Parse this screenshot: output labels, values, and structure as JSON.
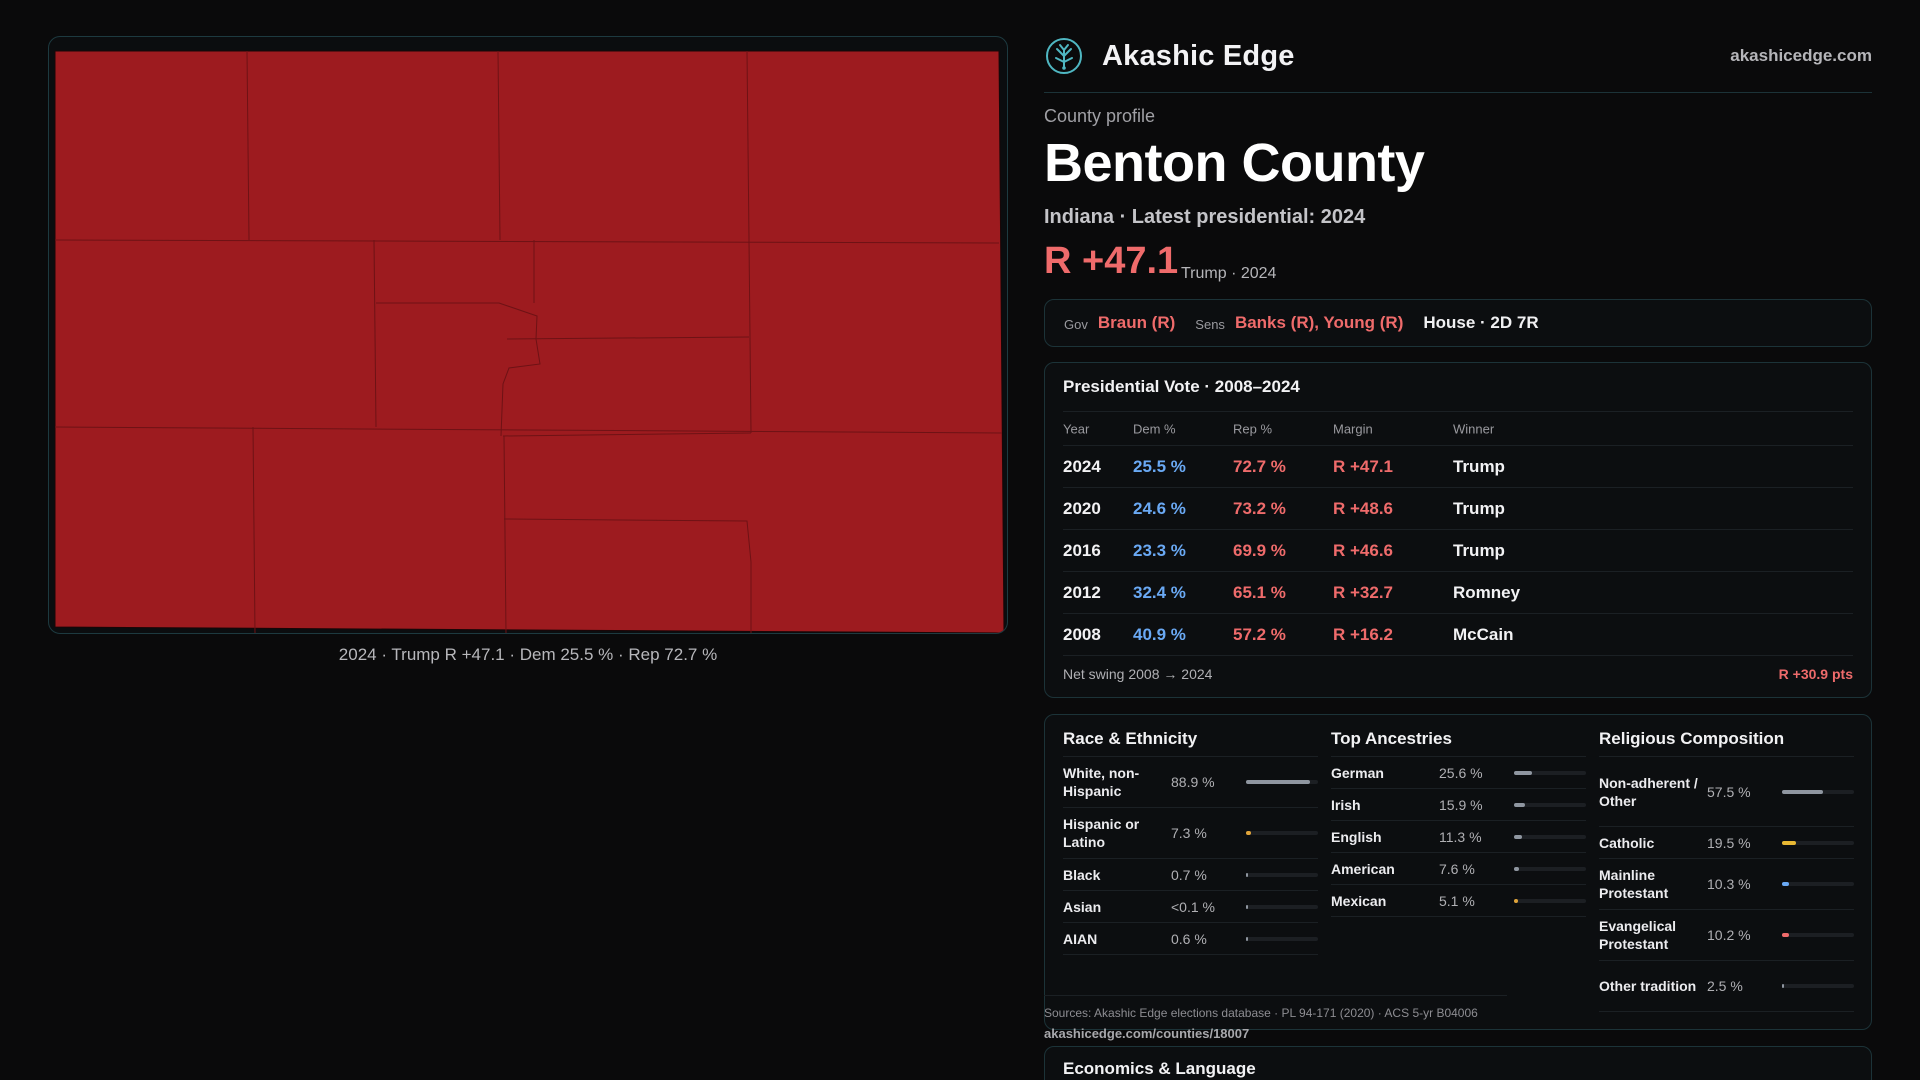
{
  "brand": {
    "name": "Akashic Edge",
    "url": "akashicedge.com",
    "logo_icon": "tree-globe-icon"
  },
  "county": {
    "eyebrow": "County profile",
    "name": "Benton County",
    "subtitle": "Indiana · Latest presidential: 2024",
    "margin": "R +47.1",
    "margin_note": "Trump · 2024"
  },
  "map": {
    "fill_color": "#9d1b1f",
    "caption": "2024 · Trump R +47.1 · Dem 25.5 % · Rep 72.7 %"
  },
  "officials": {
    "gov_label": "Gov",
    "gov": "Braun (R)",
    "sens_label": "Sens",
    "sens": "Banks (R), Young (R)",
    "house": "House · 2D 7R"
  },
  "presidential": {
    "title": "Presidential Vote · 2008–2024",
    "columns": {
      "year": "Year",
      "dem": "Dem %",
      "rep": "Rep %",
      "margin": "Margin",
      "winner": "Winner"
    },
    "rows": [
      {
        "year": "2024",
        "dem": "25.5 %",
        "rep": "72.7 %",
        "margin": "R +47.1",
        "winner": "Trump"
      },
      {
        "year": "2020",
        "dem": "24.6 %",
        "rep": "73.2 %",
        "margin": "R +48.6",
        "winner": "Trump"
      },
      {
        "year": "2016",
        "dem": "23.3 %",
        "rep": "69.9 %",
        "margin": "R +46.6",
        "winner": "Trump"
      },
      {
        "year": "2012",
        "dem": "32.4 %",
        "rep": "65.1 %",
        "margin": "R +32.7",
        "winner": "Romney"
      },
      {
        "year": "2008",
        "dem": "40.9 %",
        "rep": "57.2 %",
        "margin": "R +16.2",
        "winner": "McCain"
      }
    ],
    "swing_label": "Net swing 2008 → 2024",
    "swing_value": "R +30.9 pts"
  },
  "race": {
    "title": "Race & Ethnicity",
    "items": [
      {
        "label": "White, non-Hispanic",
        "pct": "88.9 %",
        "value": 0.889,
        "color": "#8f96a0"
      },
      {
        "label": "Hispanic or Latino",
        "pct": "7.3 %",
        "value": 0.073,
        "color": "#e0a43a"
      },
      {
        "label": "Black",
        "pct": "0.7 %",
        "value": 0.007,
        "color": "#8f96a0"
      },
      {
        "label": "Asian",
        "pct": "<0.1 %",
        "value": 0.0,
        "color": "#8f96a0"
      },
      {
        "label": "AIAN",
        "pct": "0.6 %",
        "value": 0.006,
        "color": "#8f96a0"
      }
    ]
  },
  "ancestry": {
    "title": "Top Ancestries",
    "items": [
      {
        "label": "German",
        "pct": "25.6 %",
        "value": 0.256,
        "color": "#8f96a0"
      },
      {
        "label": "Irish",
        "pct": "15.9 %",
        "value": 0.159,
        "color": "#8f96a0"
      },
      {
        "label": "English",
        "pct": "11.3 %",
        "value": 0.113,
        "color": "#8f96a0"
      },
      {
        "label": "American",
        "pct": "7.6 %",
        "value": 0.076,
        "color": "#8f96a0"
      },
      {
        "label": "Mexican",
        "pct": "5.1 %",
        "value": 0.051,
        "color": "#e0a43a"
      }
    ]
  },
  "religion": {
    "title": "Religious Composition",
    "items": [
      {
        "label": "Non-adherent / Other",
        "pct": "57.5 %",
        "value": 0.575,
        "color": "#8f96a0"
      },
      {
        "label": "Catholic",
        "pct": "19.5 %",
        "value": 0.195,
        "color": "#e8b833"
      },
      {
        "label": "Mainline Protestant",
        "pct": "10.3 %",
        "value": 0.103,
        "color": "#6aa9f4"
      },
      {
        "label": "Evangelical Protestant",
        "pct": "10.2 %",
        "value": 0.102,
        "color": "#ef6b6b"
      },
      {
        "label": "Other tradition",
        "pct": "2.5 %",
        "value": 0.025,
        "color": "#8f96a0"
      }
    ]
  },
  "sources": {
    "text": "Sources: Akashic Edge elections database · PL 94-171 (2020) · ACS 5-yr B04006",
    "url": "akashicedge.com/counties/18007"
  },
  "economics": {
    "title": "Economics & Language"
  }
}
